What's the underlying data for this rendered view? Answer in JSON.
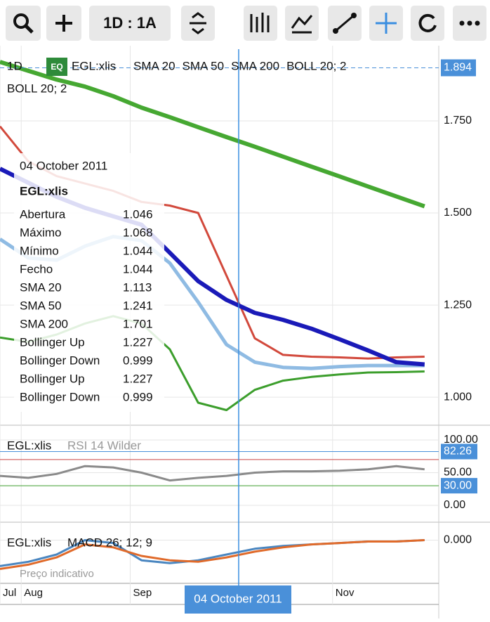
{
  "toolbar": {
    "interval": "1D : 1A"
  },
  "legend": {
    "interval": "1D",
    "badge": "EQ",
    "symbol": "EGL:xlis",
    "studies": [
      "SMA 20",
      "SMA 50",
      "SMA 200",
      "BOLL 20; 2"
    ],
    "second_line": "BOLL 20; 2"
  },
  "tooltip": {
    "date": "04 October 2011",
    "symbol": "EGL:xlis",
    "rows": [
      {
        "label": "Abertura",
        "value": "1.046",
        "color": "#111111"
      },
      {
        "label": "Máximo",
        "value": "1.068",
        "color": "#111111"
      },
      {
        "label": "Mínimo",
        "value": "1.044",
        "color": "#111111"
      },
      {
        "label": "Fecho",
        "value": "1.044",
        "color": "#111111"
      },
      {
        "label": "SMA 20",
        "value": "1.113",
        "color": "#7fb3e0"
      },
      {
        "label": "SMA 50",
        "value": "1.241",
        "color": "#1a1aa8"
      },
      {
        "label": "SMA 200",
        "value": "1.701",
        "color": "#3c9e2c"
      },
      {
        "label": "Bollinger Up",
        "value": "1.227",
        "color": "#d2493c"
      },
      {
        "label": "Bollinger Down",
        "value": "0.999",
        "color": "#3c9e2c"
      },
      {
        "label": "Bollinger Up",
        "value": "1.227",
        "color": "#d2493c"
      },
      {
        "label": "Bollinger Down",
        "value": "0.999",
        "color": "#3c9e2c"
      }
    ]
  },
  "crosshair_label": "04 October 2011",
  "x_axis": {
    "x": [
      0,
      1,
      2,
      3,
      4,
      5,
      6,
      7,
      8,
      9,
      10,
      11,
      12,
      13,
      14,
      15
    ],
    "xlim": [
      0,
      15.5
    ],
    "xticks": [
      {
        "value": 0,
        "label": "Jul"
      },
      {
        "value": 0.75,
        "label": "Aug"
      },
      {
        "value": 4.6,
        "label": "Sep"
      },
      {
        "value": 11.75,
        "label": "Nov"
      }
    ]
  },
  "price_panel": {
    "ylim": [
      0.924,
      1.954
    ],
    "yticks": [
      {
        "value": 1.0,
        "label": "1.000"
      },
      {
        "value": 1.25,
        "label": "1.250"
      },
      {
        "value": 1.5,
        "label": "1.500"
      },
      {
        "value": 1.75,
        "label": "1.750"
      }
    ],
    "last_price": {
      "value": 1.894,
      "label": "1.894"
    },
    "series": [
      {
        "name": "BOLL up",
        "color": "#d2493c",
        "width": 3,
        "values": [
          1.735,
          1.64,
          1.6,
          1.58,
          1.56,
          1.53,
          1.52,
          1.5,
          1.33,
          1.16,
          1.115,
          1.11,
          1.108,
          1.105,
          1.108,
          1.11
        ]
      },
      {
        "name": "BOLL down",
        "color": "#3c9e2c",
        "width": 3,
        "values": [
          1.162,
          1.15,
          1.17,
          1.2,
          1.22,
          1.2,
          1.13,
          0.985,
          0.965,
          1.02,
          1.045,
          1.055,
          1.062,
          1.067,
          1.068,
          1.07
        ]
      },
      {
        "name": "SMA 20",
        "color": "#8fbbe3",
        "width": 5,
        "values": [
          1.429,
          1.378,
          1.372,
          1.41,
          1.436,
          1.425,
          1.364,
          1.258,
          1.143,
          1.095,
          1.081,
          1.078,
          1.083,
          1.086,
          1.086,
          1.086
        ]
      },
      {
        "name": "SMA 50",
        "color": "#1a1ab8",
        "width": 6,
        "values": [
          1.62,
          1.582,
          1.544,
          1.514,
          1.491,
          1.468,
          1.392,
          1.315,
          1.264,
          1.229,
          1.21,
          1.186,
          1.157,
          1.127,
          1.095,
          1.089
        ]
      },
      {
        "name": "SMA 200",
        "color": "#46a832",
        "width": 6,
        "values": [
          1.91,
          1.886,
          1.862,
          1.843,
          1.817,
          1.786,
          1.76,
          1.733,
          1.706,
          1.68,
          1.653,
          1.626,
          1.599,
          1.572,
          1.545,
          1.518
        ]
      }
    ]
  },
  "rsi_panel": {
    "symbol": "EGL:xlis",
    "study": "RSI 14 Wilder",
    "ylim": [
      -22.6,
      117.2
    ],
    "yticks": [
      {
        "value": 100,
        "label": "100.00"
      },
      {
        "value": 50,
        "label": "50.00"
      },
      {
        "value": 0,
        "label": "0.00"
      }
    ],
    "upper": {
      "value": 82.26,
      "label": "82.26"
    },
    "lower": {
      "value": 30,
      "label": "30.00"
    },
    "overbought": 70,
    "series": [
      {
        "name": "RSI",
        "color": "#8a8a8a",
        "values": [
          45,
          42,
          48,
          60,
          58,
          50,
          38,
          42,
          45,
          50,
          52,
          52,
          53,
          55,
          60,
          55
        ]
      }
    ]
  },
  "macd_panel": {
    "symbol": "EGL:xlis",
    "study": "MACD 26; 12; 9",
    "note": "Preço indicativo",
    "ylim": [
      -0.03,
      0.01
    ],
    "yticks": [
      {
        "value": 0,
        "label": "0.000"
      }
    ],
    "series": [
      {
        "name": "MACD",
        "color": "#4a86c0",
        "values": [
          -0.018,
          -0.015,
          -0.01,
          0,
          -0.002,
          -0.014,
          -0.016,
          -0.014,
          -0.01,
          -0.006,
          -0.004,
          -0.003,
          -0.002,
          -0.001,
          -0.001,
          0
        ]
      },
      {
        "name": "Signal",
        "color": "#e06a2a",
        "values": [
          -0.02,
          -0.017,
          -0.012,
          -0.003,
          -0.005,
          -0.011,
          -0.014,
          -0.015,
          -0.012,
          -0.008,
          -0.005,
          -0.003,
          -0.002,
          -0.001,
          -0.001,
          0
        ]
      }
    ]
  }
}
